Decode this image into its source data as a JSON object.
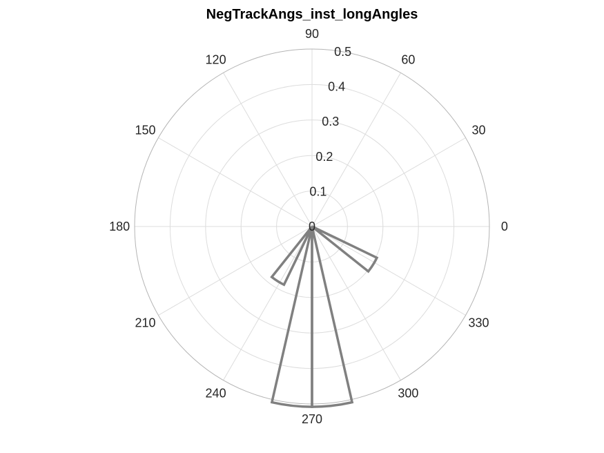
{
  "chart_data": {
    "type": "polar-histogram",
    "title": "NegTrackAngs_inst_longAngles",
    "theta_unit": "degrees",
    "theta_ticks": [
      0,
      30,
      60,
      90,
      120,
      150,
      180,
      210,
      240,
      270,
      300,
      330
    ],
    "r_ticks": [
      0,
      0.1,
      0.2,
      0.3,
      0.4,
      0.5
    ],
    "rlim": [
      0,
      0.5
    ],
    "bin_width_deg": 12.857,
    "bins": [
      {
        "theta_start": 231.43,
        "theta_end": 244.29,
        "value": 0.182
      },
      {
        "theta_start": 257.14,
        "theta_end": 270.0,
        "value": 0.508
      },
      {
        "theta_start": 270.0,
        "theta_end": 282.86,
        "value": 0.508
      },
      {
        "theta_start": 321.43,
        "theta_end": 334.29,
        "value": 0.203
      }
    ],
    "bin_edge_color": "#808080",
    "grid": true
  }
}
